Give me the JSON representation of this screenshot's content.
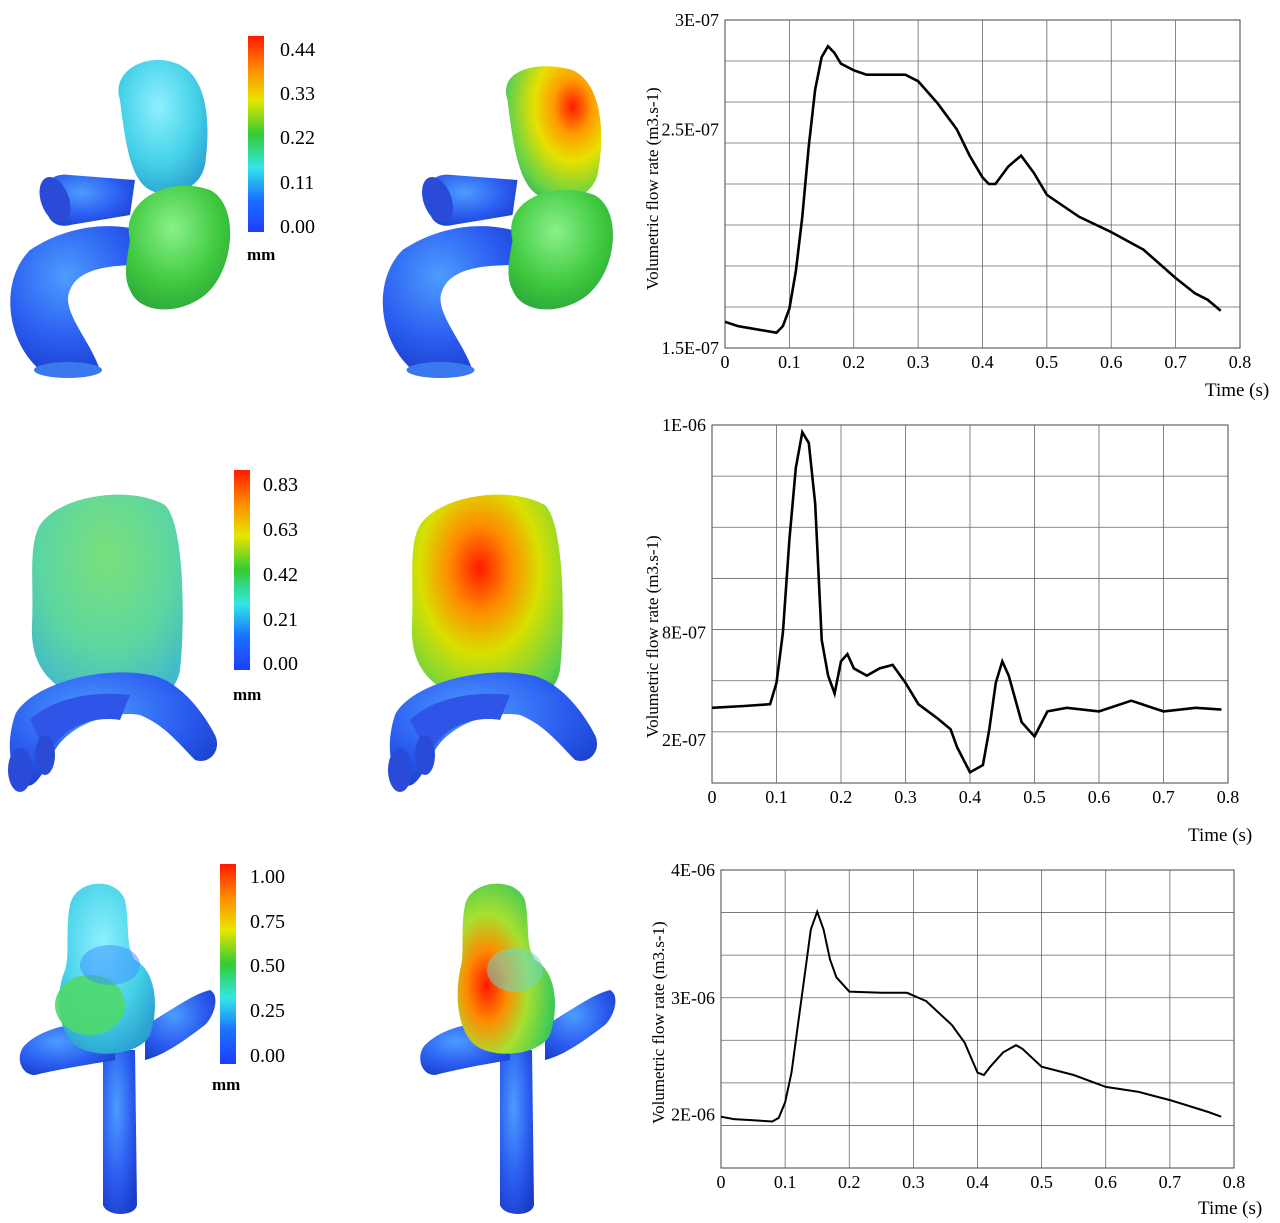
{
  "colorbars": [
    {
      "ticks": [
        "0.44",
        "0.33",
        "0.22",
        "0.11",
        "0.00"
      ],
      "unit": "mm"
    },
    {
      "ticks": [
        "0.83",
        "0.63",
        "0.42",
        "0.21",
        "0.00"
      ],
      "unit": "mm"
    },
    {
      "ticks": [
        "1.00",
        "0.75",
        "0.50",
        "0.25",
        "0.00"
      ],
      "unit": "mm"
    }
  ],
  "colorbar_colors": [
    "#ff1a00",
    "#ff8c00",
    "#e6e600",
    "#33cc33",
    "#33e6e6",
    "#1a73ff",
    "#1f3cff"
  ],
  "chart_data": [
    {
      "type": "line",
      "xlabel": "Time (s)",
      "ylabel": "Volumetric flow rate (m3.s-1)",
      "x_ticks": [
        "0",
        "0.1",
        "0.2",
        "0.3",
        "0.4",
        "0.5",
        "0.6",
        "0.7",
        "0.8"
      ],
      "y_ticks": [
        "1.5E-07",
        "2.5E-07",
        "3E-07"
      ],
      "xlim": [
        0,
        0.8
      ],
      "ylim": [
        1.5e-07,
        3e-07
      ],
      "grid": true,
      "x": [
        0,
        0.02,
        0.04,
        0.06,
        0.08,
        0.09,
        0.1,
        0.11,
        0.12,
        0.13,
        0.14,
        0.15,
        0.16,
        0.17,
        0.18,
        0.2,
        0.22,
        0.25,
        0.28,
        0.3,
        0.33,
        0.36,
        0.38,
        0.4,
        0.41,
        0.42,
        0.44,
        0.46,
        0.48,
        0.5,
        0.55,
        0.6,
        0.65,
        0.7,
        0.73,
        0.75,
        0.77
      ],
      "y": [
        1.62e-07,
        1.6e-07,
        1.59e-07,
        1.58e-07,
        1.57e-07,
        1.6e-07,
        1.68e-07,
        1.85e-07,
        2.1e-07,
        2.42e-07,
        2.68e-07,
        2.83e-07,
        2.88e-07,
        2.85e-07,
        2.8e-07,
        2.77e-07,
        2.75e-07,
        2.75e-07,
        2.75e-07,
        2.72e-07,
        2.62e-07,
        2.5e-07,
        2.38e-07,
        2.28e-07,
        2.25e-07,
        2.25e-07,
        2.33e-07,
        2.38e-07,
        2.3e-07,
        2.2e-07,
        2.1e-07,
        2.03e-07,
        1.95e-07,
        1.82e-07,
        1.75e-07,
        1.72e-07,
        1.67e-07
      ]
    },
    {
      "type": "line",
      "xlabel": "Time (s)",
      "ylabel": "Volumetric flow rate (m3.s-1)",
      "x_ticks": [
        "0",
        "0.1",
        "0.2",
        "0.3",
        "0.4",
        "0.5",
        "0.6",
        "0.7",
        "0.8"
      ],
      "y_ticks": [
        "2E-07",
        "8E-07",
        "1E-06"
      ],
      "xlim": [
        0,
        0.8
      ],
      "ylim": [
        0,
        1e-06
      ],
      "grid": true,
      "x": [
        0,
        0.05,
        0.09,
        0.1,
        0.11,
        0.12,
        0.13,
        0.14,
        0.15,
        0.16,
        0.17,
        0.18,
        0.19,
        0.2,
        0.21,
        0.22,
        0.24,
        0.26,
        0.28,
        0.3,
        0.32,
        0.35,
        0.37,
        0.38,
        0.4,
        0.42,
        0.43,
        0.44,
        0.45,
        0.46,
        0.48,
        0.5,
        0.52,
        0.55,
        0.6,
        0.65,
        0.7,
        0.75,
        0.79
      ],
      "y": [
        2.1e-07,
        2.15e-07,
        2.2e-07,
        2.8e-07,
        4.2e-07,
        6.8e-07,
        8.8e-07,
        9.8e-07,
        9.5e-07,
        7.8e-07,
        4e-07,
        3e-07,
        2.5e-07,
        3.4e-07,
        3.6e-07,
        3.2e-07,
        3e-07,
        3.2e-07,
        3.3e-07,
        2.8e-07,
        2.2e-07,
        1.8e-07,
        1.5e-07,
        1e-07,
        3e-08,
        5e-08,
        1.5e-07,
        2.8e-07,
        3.4e-07,
        3e-07,
        1.7e-07,
        1.3e-07,
        2e-07,
        2.1e-07,
        2e-07,
        2.3e-07,
        2e-07,
        2.1e-07,
        2.05e-07
      ]
    },
    {
      "type": "line",
      "xlabel": "Time (s)",
      "ylabel": "Volumetric flow rate (m3.s-1)",
      "x_ticks": [
        "0",
        "0.1",
        "0.2",
        "0.3",
        "0.4",
        "0.5",
        "0.6",
        "0.7",
        "0.8"
      ],
      "y_ticks": [
        "2E-06",
        "3E-06",
        "4E-06"
      ],
      "xlim": [
        0,
        0.8
      ],
      "ylim": [
        1.5e-06,
        4e-06
      ],
      "grid": true,
      "x": [
        0,
        0.02,
        0.05,
        0.08,
        0.09,
        0.1,
        0.11,
        0.12,
        0.13,
        0.14,
        0.15,
        0.16,
        0.17,
        0.18,
        0.2,
        0.25,
        0.29,
        0.32,
        0.36,
        0.38,
        0.4,
        0.41,
        0.42,
        0.44,
        0.46,
        0.47,
        0.5,
        0.55,
        0.6,
        0.65,
        0.7,
        0.73,
        0.76,
        0.78
      ],
      "y": [
        1.93e-06,
        1.91e-06,
        1.9e-06,
        1.89e-06,
        1.92e-06,
        2.05e-06,
        2.3e-06,
        2.7e-06,
        3.1e-06,
        3.5e-06,
        3.65e-06,
        3.5e-06,
        3.25e-06,
        3.1e-06,
        2.98e-06,
        2.97e-06,
        2.97e-06,
        2.9e-06,
        2.7e-06,
        2.55e-06,
        2.3e-06,
        2.28e-06,
        2.35e-06,
        2.47e-06,
        2.53e-06,
        2.5e-06,
        2.35e-06,
        2.28e-06,
        2.18e-06,
        2.14e-06,
        2.07e-06,
        2.02e-06,
        1.97e-06,
        1.93e-06
      ]
    }
  ]
}
